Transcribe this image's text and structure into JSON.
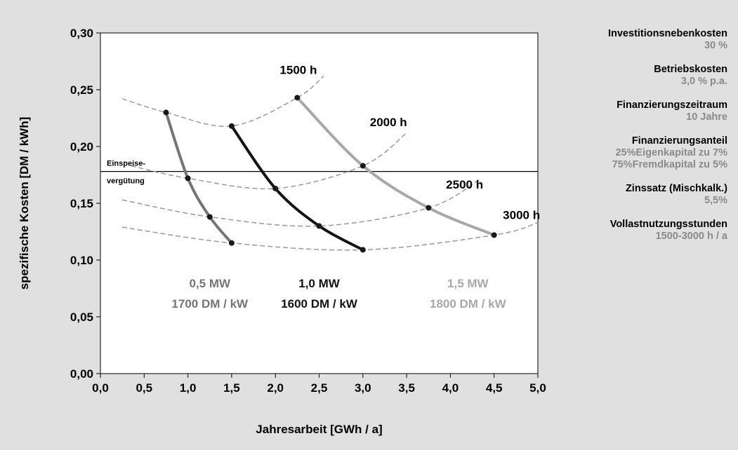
{
  "chart_data": {
    "type": "line",
    "xlabel": "Jahresarbeit [GWh / a]",
    "ylabel": "spezifische Kosten [DM / kWh]",
    "xlim": [
      0,
      5
    ],
    "ylim": [
      0,
      0.3
    ],
    "x_ticks": [
      "0,0",
      "0,5",
      "1,0",
      "1,5",
      "2,0",
      "2,5",
      "3,0",
      "3,5",
      "4,0",
      "4,5",
      "5,0"
    ],
    "y_ticks": [
      "0,00",
      "0,05",
      "0,10",
      "0,15",
      "0,20",
      "0,25",
      "0,30"
    ],
    "grid": false,
    "reference_line": {
      "y": 0.178,
      "label_line1": "Einspeise-",
      "label_line2": "vergütung"
    },
    "series": [
      {
        "name_line1": "0,5 MW",
        "name_line2": "1700 DM / kW",
        "color": "#757575",
        "points": [
          [
            0.75,
            0.23
          ],
          [
            1.0,
            0.172
          ],
          [
            1.25,
            0.138
          ],
          [
            1.5,
            0.115
          ]
        ]
      },
      {
        "name_line1": "1,0 MW",
        "name_line2": "1600 DM / kW",
        "color": "#141414",
        "points": [
          [
            1.5,
            0.218
          ],
          [
            2.0,
            0.163
          ],
          [
            2.5,
            0.13
          ],
          [
            3.0,
            0.109
          ]
        ]
      },
      {
        "name_line1": "1,5 MW",
        "name_line2": "1800 DM / kW",
        "color": "#a8a8a8",
        "points": [
          [
            2.25,
            0.243
          ],
          [
            3.0,
            0.183
          ],
          [
            3.75,
            0.146
          ],
          [
            4.5,
            0.122
          ]
        ]
      }
    ],
    "iso_hours": [
      {
        "label": "1500 h",
        "label_x": 2.05,
        "label_y": 0.264,
        "points": [
          [
            0.25,
            0.242
          ],
          [
            0.75,
            0.23
          ],
          [
            1.5,
            0.218
          ],
          [
            2.25,
            0.243
          ],
          [
            2.55,
            0.262
          ]
        ]
      },
      {
        "label": "2000 h",
        "label_x": 3.08,
        "label_y": 0.218,
        "points": [
          [
            0.35,
            0.183
          ],
          [
            1.0,
            0.172
          ],
          [
            2.0,
            0.163
          ],
          [
            3.0,
            0.183
          ],
          [
            3.5,
            0.212
          ]
        ]
      },
      {
        "label": "2500 h",
        "label_x": 3.95,
        "label_y": 0.163,
        "points": [
          [
            0.25,
            0.153
          ],
          [
            1.25,
            0.138
          ],
          [
            2.5,
            0.13
          ],
          [
            3.75,
            0.146
          ],
          [
            4.35,
            0.172
          ]
        ]
      },
      {
        "label": "3000 h",
        "label_x": 4.6,
        "label_y": 0.136,
        "points": [
          [
            0.25,
            0.129
          ],
          [
            1.5,
            0.115
          ],
          [
            3.0,
            0.109
          ],
          [
            4.5,
            0.122
          ],
          [
            5.0,
            0.133
          ]
        ]
      }
    ]
  },
  "params": [
    {
      "label": "Investitionsnebenkosten",
      "value": "30 %"
    },
    {
      "label": "Betriebskosten",
      "value": "3,0 % p.a."
    },
    {
      "label": "Finanzierungszeitraum",
      "value": "10 Jahre"
    },
    {
      "label": "Finanzierungsanteil",
      "value": "25%Eigenkapital zu 7%\n75%Fremdkapital zu 5%"
    },
    {
      "label": "Zinssatz (Mischkalk.)",
      "value": "5,5%"
    },
    {
      "label": "Vollastnutzungsstunden",
      "value": "1500-3000 h / a"
    }
  ]
}
